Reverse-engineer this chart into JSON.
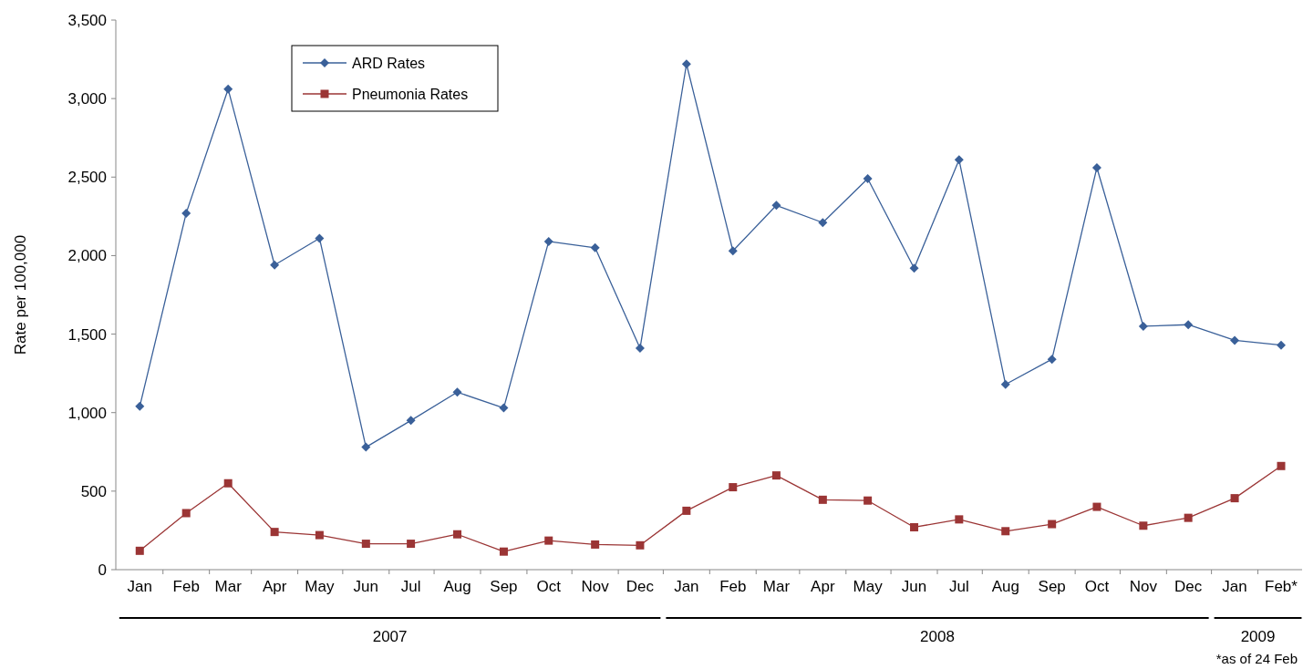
{
  "chart_data": {
    "type": "line",
    "ylabel": "Rate per 100,000",
    "x": [
      "2007-01",
      "2007-02",
      "2007-03",
      "2007-04",
      "2007-05",
      "2007-06",
      "2007-07",
      "2007-08",
      "2007-09",
      "2007-10",
      "2007-11",
      "2007-12",
      "2008-01",
      "2008-02",
      "2008-03",
      "2008-04",
      "2008-05",
      "2008-06",
      "2008-07",
      "2008-08",
      "2008-09",
      "2008-10",
      "2008-11",
      "2008-12",
      "2009-01",
      "2009-02"
    ],
    "xlim": [
      "2006-12-16",
      "2009-02-15"
    ],
    "xticks": [
      {
        "value": "2007-01",
        "label": "Jan"
      },
      {
        "value": "2007-02",
        "label": "Feb"
      },
      {
        "value": "2007-03",
        "label": "Mar"
      },
      {
        "value": "2007-04",
        "label": "Apr"
      },
      {
        "value": "2007-05",
        "label": "May"
      },
      {
        "value": "2007-06",
        "label": "Jun"
      },
      {
        "value": "2007-07",
        "label": "Jul"
      },
      {
        "value": "2007-08",
        "label": "Aug"
      },
      {
        "value": "2007-09",
        "label": "Sep"
      },
      {
        "value": "2007-10",
        "label": "Oct"
      },
      {
        "value": "2007-11",
        "label": "Nov"
      },
      {
        "value": "2007-12",
        "label": "Dec"
      },
      {
        "value": "2008-01",
        "label": "Jan"
      },
      {
        "value": "2008-02",
        "label": "Feb"
      },
      {
        "value": "2008-03",
        "label": "Mar"
      },
      {
        "value": "2008-04",
        "label": "Apr"
      },
      {
        "value": "2008-05",
        "label": "May"
      },
      {
        "value": "2008-06",
        "label": "Jun"
      },
      {
        "value": "2008-07",
        "label": "Jul"
      },
      {
        "value": "2008-08",
        "label": "Aug"
      },
      {
        "value": "2008-09",
        "label": "Sep"
      },
      {
        "value": "2008-10",
        "label": "Oct"
      },
      {
        "value": "2008-11",
        "label": "Nov"
      },
      {
        "value": "2008-12",
        "label": "Dec"
      },
      {
        "value": "2009-01",
        "label": "Jan"
      },
      {
        "value": "2009-02",
        "label": "Feb*"
      }
    ],
    "ylim": [
      0,
      3500
    ],
    "yticks": [
      {
        "value": 0,
        "label": "0"
      },
      {
        "value": 500,
        "label": "500"
      },
      {
        "value": 1000,
        "label": "1,000"
      },
      {
        "value": 1500,
        "label": "1,500"
      },
      {
        "value": 2000,
        "label": "2,000"
      },
      {
        "value": 2500,
        "label": "2,500"
      },
      {
        "value": 3000,
        "label": "3,000"
      },
      {
        "value": 3500,
        "label": "3,500"
      }
    ],
    "grid": false,
    "legend": "top left",
    "line_style": "solid",
    "series": [
      {
        "name": "ARD Rates",
        "color": "#3a6099",
        "marker": "diamond",
        "values": [
          1040,
          2270,
          3060,
          1940,
          2110,
          780,
          950,
          1130,
          1030,
          2090,
          2050,
          1410,
          3220,
          2030,
          2320,
          2210,
          2490,
          1920,
          2610,
          1180,
          1340,
          2560,
          1550,
          1560,
          1460,
          1430
        ]
      },
      {
        "name": "Pneumonia Rates",
        "color": "#9b3535",
        "marker": "square",
        "values": [
          120,
          360,
          550,
          240,
          220,
          165,
          165,
          225,
          115,
          185,
          160,
          155,
          375,
          525,
          600,
          445,
          440,
          270,
          320,
          245,
          290,
          400,
          280,
          330,
          455,
          660
        ]
      }
    ],
    "annotations": [
      "2007",
      "2008",
      "2009",
      "*as of 24 Feb"
    ]
  }
}
